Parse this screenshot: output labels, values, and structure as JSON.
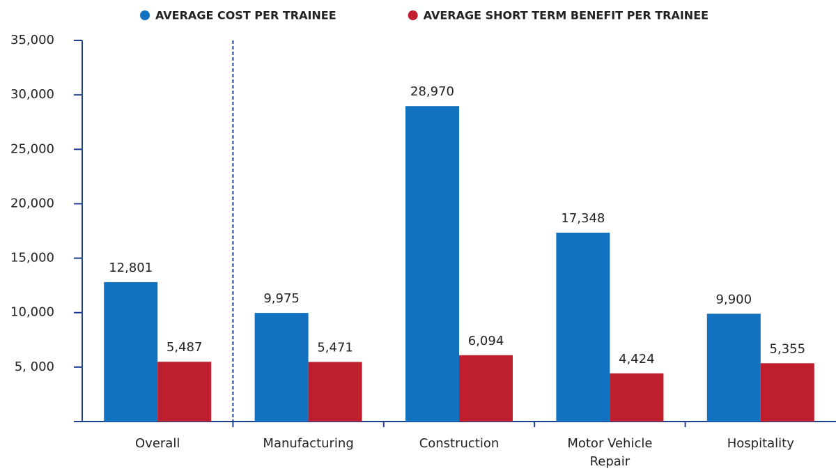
{
  "chart_data": {
    "type": "bar",
    "categories": [
      "Overall",
      "Manufacturing",
      "Construction",
      "Motor Vehicle Repair",
      "Hospitality"
    ],
    "series": [
      {
        "name": "AVERAGE COST PER TRAINEE",
        "color": "#1272bf",
        "values": [
          12801,
          9975,
          28970,
          17348,
          9900
        ],
        "value_labels": [
          "12,801",
          "9,975",
          "28,970",
          "17,348",
          "9,900"
        ]
      },
      {
        "name": "AVERAGE SHORT TERM BENEFIT PER TRAINEE",
        "color": "#be1e2d",
        "values": [
          5487,
          5471,
          6094,
          4424,
          5355
        ],
        "value_labels": [
          "5,487",
          "5,471",
          "6,094",
          "4,424",
          "5,355"
        ]
      }
    ],
    "ylim": [
      0,
      35000
    ],
    "yticks": [
      {
        "value": 5000,
        "label": "5, 000"
      },
      {
        "value": 10000,
        "label": "10,000"
      },
      {
        "value": 15000,
        "label": "15,000"
      },
      {
        "value": 20000,
        "label": "20,000"
      },
      {
        "value": 25000,
        "label": "25,000"
      },
      {
        "value": 30000,
        "label": "30,000"
      },
      {
        "value": 35000,
        "label": "35,000"
      }
    ],
    "legend": "top"
  }
}
